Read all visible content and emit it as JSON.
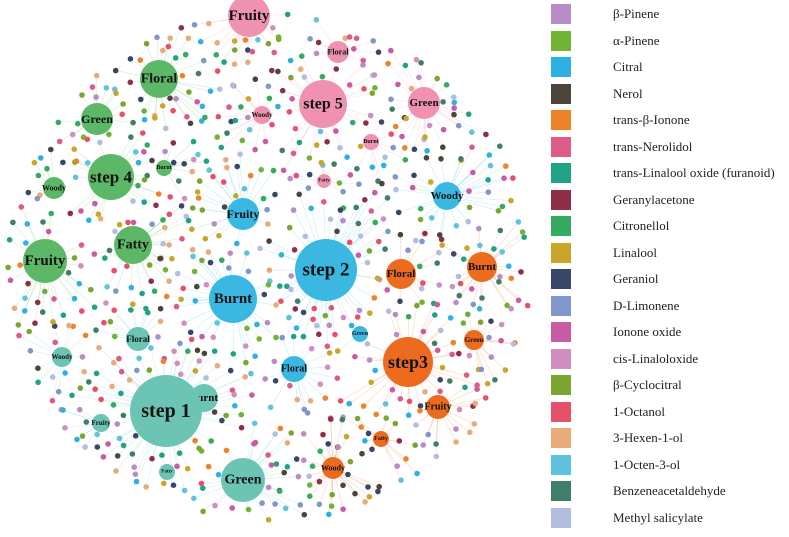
{
  "colors": {
    "step1": "#6cc4b4",
    "step2": "#3ab8e2",
    "step3": "#ec6b1e",
    "step4": "#5cb866",
    "step5": "#ee92b0",
    "edge": "#a9d7cf"
  },
  "hubs": [
    {
      "id": "step1",
      "label": "step 1",
      "group": "step1"
    },
    {
      "id": "step2",
      "label": "step 2",
      "group": "step2"
    },
    {
      "id": "step3",
      "label": "step3",
      "group": "step3"
    },
    {
      "id": "step4",
      "label": "step 4",
      "group": "step4"
    },
    {
      "id": "step5",
      "label": "step 5",
      "group": "step5"
    }
  ],
  "attributes": [
    {
      "label": "Fruity",
      "group": "step5"
    },
    {
      "label": "Floral",
      "group": "step5"
    },
    {
      "label": "Green",
      "group": "step5"
    },
    {
      "label": "Woody",
      "group": "step5"
    },
    {
      "label": "Burnt",
      "group": "step5"
    },
    {
      "label": "Fatty",
      "group": "step5"
    },
    {
      "label": "Floral",
      "group": "step4"
    },
    {
      "label": "Green",
      "group": "step4"
    },
    {
      "label": "Burnt",
      "group": "step4"
    },
    {
      "label": "Woody",
      "group": "step4"
    },
    {
      "label": "Fruity",
      "group": "step4"
    },
    {
      "label": "Fatty",
      "group": "step4"
    },
    {
      "label": "Fruity",
      "group": "step2"
    },
    {
      "label": "Woody",
      "group": "step2"
    },
    {
      "label": "Burnt",
      "group": "step2"
    },
    {
      "label": "Green",
      "group": "step2"
    },
    {
      "label": "Floral",
      "group": "step2"
    },
    {
      "label": "Floral",
      "group": "step3"
    },
    {
      "label": "Burnt",
      "group": "step3"
    },
    {
      "label": "Green",
      "group": "step3"
    },
    {
      "label": "Fruity",
      "group": "step3"
    },
    {
      "label": "Fatty",
      "group": "step3"
    },
    {
      "label": "Woody",
      "group": "step3"
    },
    {
      "label": "Floral",
      "group": "step1"
    },
    {
      "label": "Woody",
      "group": "step1"
    },
    {
      "label": "Burnt",
      "group": "step1"
    },
    {
      "label": "Fruity",
      "group": "step1"
    },
    {
      "label": "Fatty",
      "group": "step1"
    },
    {
      "label": "Green",
      "group": "step1"
    }
  ],
  "legend": [
    {
      "label": "β-Pinene",
      "color": "#b88cc6"
    },
    {
      "label": "α-Pinene",
      "color": "#72b336"
    },
    {
      "label": "Citral",
      "color": "#2eb0e4"
    },
    {
      "label": "Nerol",
      "color": "#4b443a"
    },
    {
      "label": "trans-β-Ionone",
      "color": "#f08228"
    },
    {
      "label": "trans-Nerolidol",
      "color": "#de5a87"
    },
    {
      "label": "trans-Linalool oxide (furanoid)",
      "color": "#1fa384"
    },
    {
      "label": "Geranylacetone",
      "color": "#8f2f47"
    },
    {
      "label": "Citronellol",
      "color": "#35ab61"
    },
    {
      "label": "Linalool",
      "color": "#c9a52a"
    },
    {
      "label": "Geraniol",
      "color": "#38466a"
    },
    {
      "label": "D-Limonene",
      "color": "#7f97ca"
    },
    {
      "label": "Ionone oxide",
      "color": "#c95aa4"
    },
    {
      "label": "cis-Linaloloxide",
      "color": "#cf8fc0"
    },
    {
      "label": "β-Cyclocitral",
      "color": "#7aa630"
    },
    {
      "label": "1-Octanol",
      "color": "#e75069"
    },
    {
      "label": "3-Hexen-1-ol",
      "color": "#e7ac7a"
    },
    {
      "label": "1-Octen-3-ol",
      "color": "#5dc3df"
    },
    {
      "label": "Benzeneacetaldehyde",
      "color": "#3f7f6a"
    },
    {
      "label": "Methyl salicylate",
      "color": "#b3bddf"
    }
  ]
}
